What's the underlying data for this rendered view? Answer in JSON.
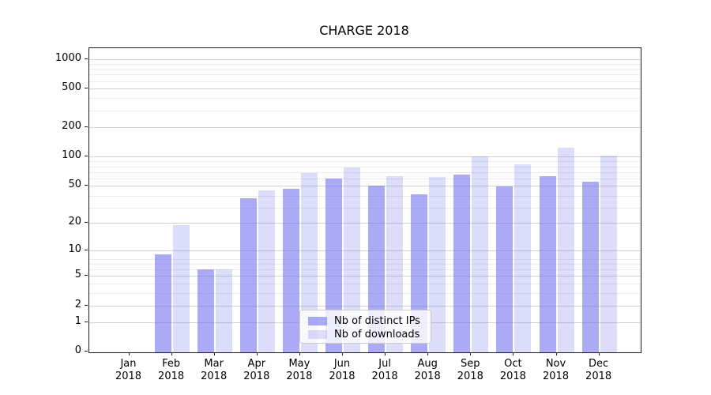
{
  "chart_data": {
    "type": "bar",
    "title": "CHARGE 2018",
    "yscale": "log1p",
    "ylim": [
      0,
      1300
    ],
    "y_ticks": [
      0,
      1,
      2,
      5,
      10,
      20,
      50,
      100,
      200,
      500,
      1000
    ],
    "grid": true,
    "legend_position": "lower center",
    "categories": [
      "Jan",
      "Feb",
      "Mar",
      "Apr",
      "May",
      "Jun",
      "Jul",
      "Aug",
      "Sep",
      "Oct",
      "Nov",
      "Dec"
    ],
    "category_year": "2018",
    "series": [
      {
        "name": "Nb of distinct IPs",
        "key": "ips",
        "color_hex": "#aaaaf5",
        "fill": "rgba(108,108,238,0.58)",
        "values": [
          0,
          9,
          6,
          37,
          46,
          59,
          50,
          40,
          65,
          49,
          63,
          55
        ]
      },
      {
        "name": "Nb of downloads",
        "key": "downloads",
        "color_hex": "#dcdcfb",
        "fill": "rgba(108,108,238,0.24)",
        "values": [
          0,
          19,
          6,
          44,
          67,
          77,
          63,
          61,
          100,
          83,
          123,
          103
        ]
      }
    ]
  }
}
